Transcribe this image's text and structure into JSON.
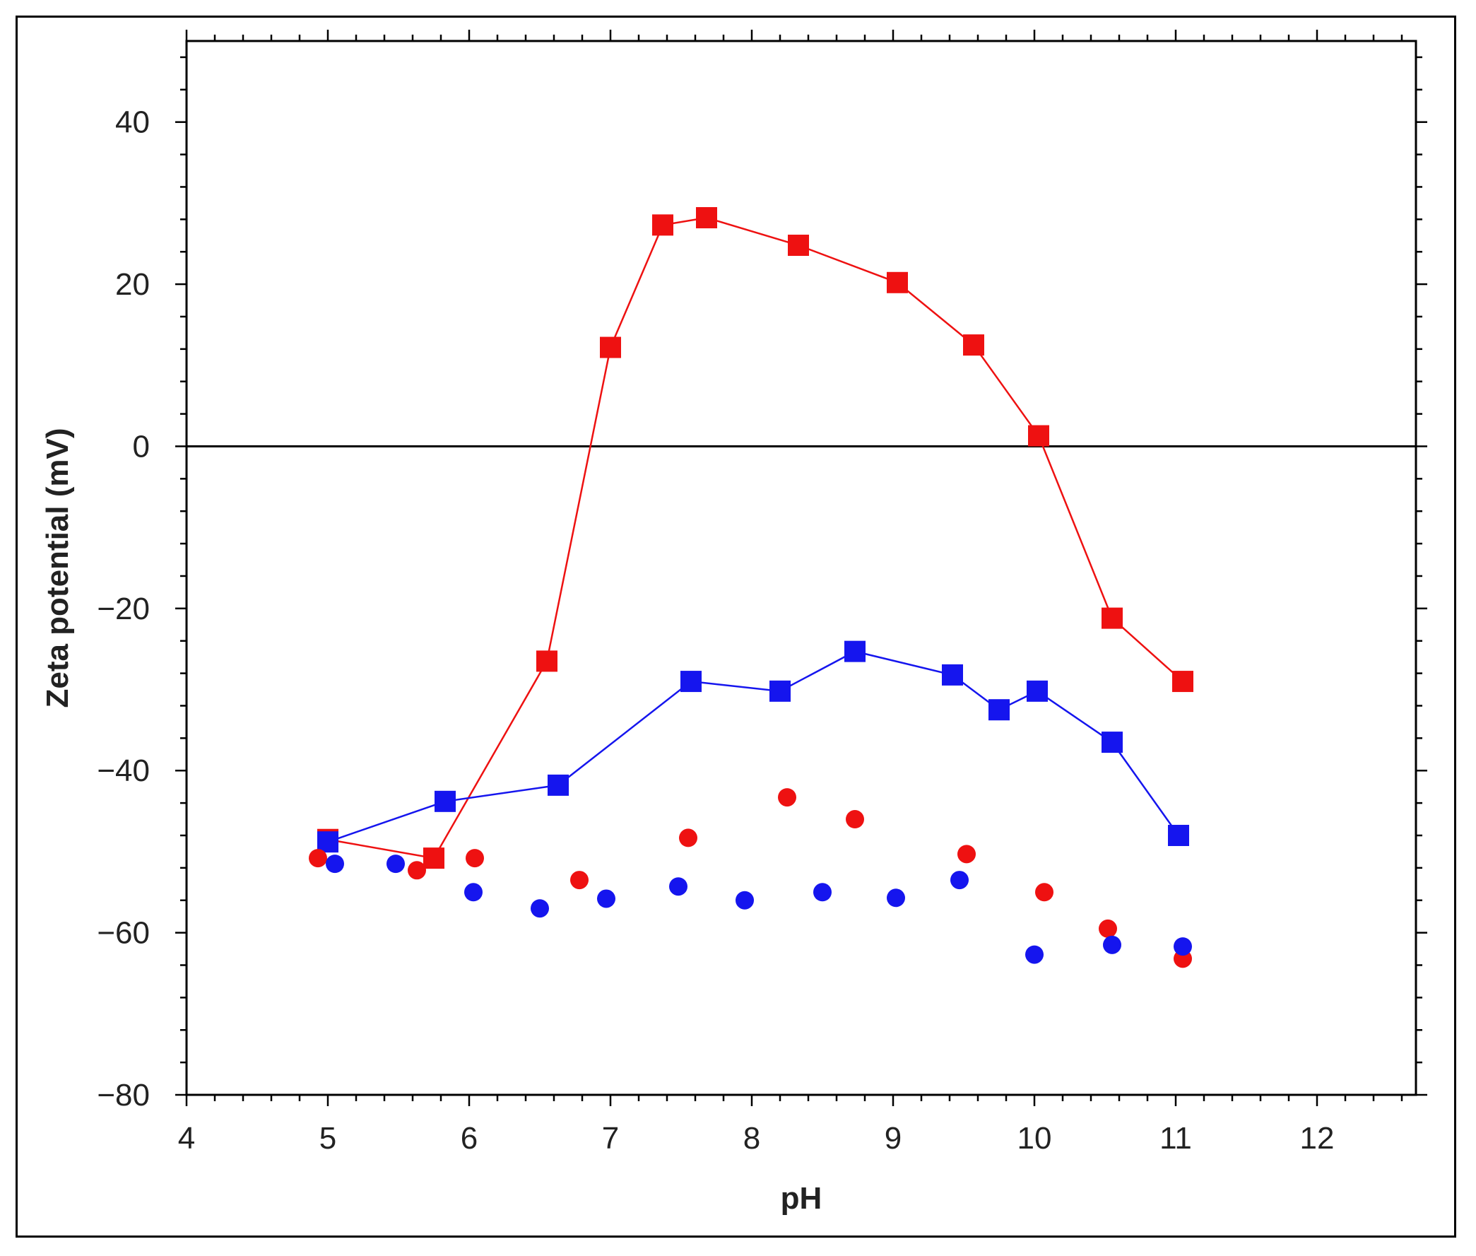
{
  "chart_data": {
    "type": "scatter",
    "xlabel": "pH",
    "ylabel": "Zeta potential (mV)",
    "xlim": [
      4,
      12.7
    ],
    "ylim": [
      -80,
      50
    ],
    "x_ticks": [
      4,
      5,
      6,
      7,
      8,
      9,
      10,
      11,
      12
    ],
    "y_ticks": [
      -80,
      -60,
      -40,
      -20,
      0,
      20,
      40
    ],
    "reference_line_y": 0,
    "grid": false,
    "legend": "none",
    "series": [
      {
        "color": "#ee1111",
        "marker": "square",
        "connected": true,
        "points": [
          [
            5.0,
            -48.5
          ],
          [
            5.75,
            -50.8
          ],
          [
            6.55,
            -26.5
          ],
          [
            7.0,
            12.2
          ],
          [
            7.37,
            27.3
          ],
          [
            7.68,
            28.2
          ],
          [
            8.33,
            24.8
          ],
          [
            9.03,
            20.2
          ],
          [
            9.57,
            12.5
          ],
          [
            10.03,
            1.3
          ],
          [
            10.55,
            -21.2
          ],
          [
            11.05,
            -29.0
          ]
        ]
      },
      {
        "color": "#1515ee",
        "marker": "square",
        "connected": true,
        "points": [
          [
            5.0,
            -48.8
          ],
          [
            5.83,
            -43.8
          ],
          [
            6.63,
            -41.8
          ],
          [
            7.57,
            -29.0
          ],
          [
            8.2,
            -30.2
          ],
          [
            8.73,
            -25.3
          ],
          [
            9.42,
            -28.2
          ],
          [
            9.75,
            -32.5
          ],
          [
            10.02,
            -30.2
          ],
          [
            10.55,
            -36.5
          ],
          [
            11.02,
            -48.0
          ]
        ]
      },
      {
        "color": "#ee1111",
        "marker": "circle",
        "connected": false,
        "points": [
          [
            4.93,
            -50.8
          ],
          [
            5.63,
            -52.3
          ],
          [
            6.04,
            -50.8
          ],
          [
            6.78,
            -53.5
          ],
          [
            7.55,
            -48.3
          ],
          [
            8.25,
            -43.3
          ],
          [
            8.73,
            -46.0
          ],
          [
            9.52,
            -50.3
          ],
          [
            10.07,
            -55.0
          ],
          [
            10.52,
            -59.5
          ],
          [
            11.05,
            -63.2
          ]
        ]
      },
      {
        "color": "#1515ee",
        "marker": "circle",
        "connected": false,
        "points": [
          [
            5.05,
            -51.5
          ],
          [
            5.48,
            -51.5
          ],
          [
            6.03,
            -55.0
          ],
          [
            6.5,
            -57.0
          ],
          [
            6.97,
            -55.8
          ],
          [
            7.48,
            -54.3
          ],
          [
            7.95,
            -56.0
          ],
          [
            8.5,
            -55.0
          ],
          [
            9.02,
            -55.7
          ],
          [
            9.47,
            -53.5
          ],
          [
            10.0,
            -62.7
          ],
          [
            10.55,
            -61.5
          ],
          [
            11.05,
            -61.7
          ]
        ]
      }
    ]
  }
}
